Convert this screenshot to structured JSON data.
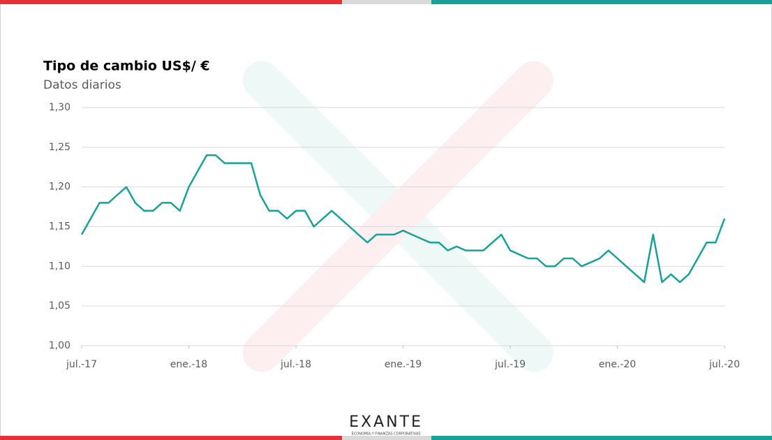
{
  "chart_data": {
    "type": "line",
    "title": "Tipo de cambio US$/ €",
    "subtitle": "Datos diarios",
    "x": [
      0,
      0.5,
      1,
      1.5,
      2,
      2.5,
      3,
      3.5,
      4,
      4.5,
      5,
      5.5,
      6,
      6.5,
      7,
      7.5,
      8,
      8.5,
      9,
      9.5,
      10,
      10.5,
      11,
      11.5,
      12,
      12.5,
      13,
      13.5,
      14,
      14.5,
      15,
      15.5,
      16,
      16.5,
      17,
      17.5,
      18,
      18.5,
      19,
      19.5,
      20,
      20.5,
      21,
      21.5,
      22,
      22.5,
      23,
      23.5,
      24,
      24.5,
      25,
      25.5,
      26,
      26.5,
      27,
      27.5,
      28,
      28.5,
      29,
      29.5,
      30,
      30.5,
      31,
      31.5,
      32,
      32.5,
      33,
      33.5,
      34,
      34.5,
      35,
      35.5,
      36
    ],
    "series": [
      {
        "color": "#17a197",
        "values": [
          1.14,
          1.16,
          1.18,
          1.18,
          1.19,
          1.2,
          1.18,
          1.17,
          1.17,
          1.18,
          1.18,
          1.17,
          1.2,
          1.22,
          1.24,
          1.24,
          1.23,
          1.23,
          1.23,
          1.23,
          1.19,
          1.17,
          1.17,
          1.16,
          1.17,
          1.17,
          1.15,
          1.16,
          1.17,
          1.16,
          1.15,
          1.14,
          1.13,
          1.14,
          1.14,
          1.14,
          1.145,
          1.14,
          1.135,
          1.13,
          1.13,
          1.12,
          1.125,
          1.12,
          1.12,
          1.12,
          1.13,
          1.14,
          1.12,
          1.115,
          1.11,
          1.11,
          1.1,
          1.1,
          1.11,
          1.11,
          1.1,
          1.105,
          1.11,
          1.12,
          1.11,
          1.1,
          1.09,
          1.08,
          1.14,
          1.08,
          1.09,
          1.08,
          1.09,
          1.11,
          1.13,
          1.13,
          1.16
        ]
      }
    ],
    "xlim": [
      0,
      36
    ],
    "xticks": [
      {
        "value": 0,
        "label": "jul.-17"
      },
      {
        "value": 6,
        "label": "ene.-18"
      },
      {
        "value": 12,
        "label": "jul.-18"
      },
      {
        "value": 18,
        "label": "ene.-19"
      },
      {
        "value": 24,
        "label": "jul.-19"
      },
      {
        "value": 30,
        "label": "ene.-20"
      },
      {
        "value": 36,
        "label": "jul.-20"
      }
    ],
    "ylim": [
      1.0,
      1.3
    ],
    "yticks": [
      {
        "value": 1.0,
        "label": "1,00"
      },
      {
        "value": 1.05,
        "label": "1,05"
      },
      {
        "value": 1.1,
        "label": "1,10"
      },
      {
        "value": 1.15,
        "label": "1,15"
      },
      {
        "value": 1.2,
        "label": "1,20"
      },
      {
        "value": 1.25,
        "label": "1,25"
      },
      {
        "value": 1.3,
        "label": "1,30"
      }
    ],
    "grid": true
  },
  "logo": {
    "name": "EXANTE",
    "tagline": "ECONOMÍA Y FINANZAS CORPORATIVAS"
  }
}
